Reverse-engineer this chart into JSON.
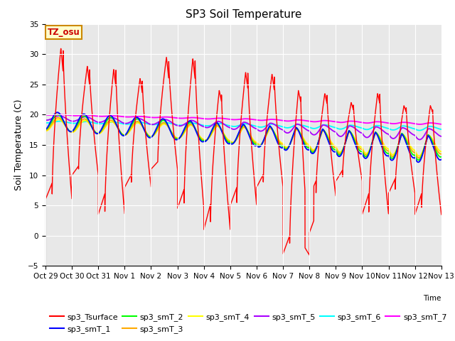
{
  "title": "SP3 Soil Temperature",
  "ylabel": "Soil Temperature (C)",
  "xlabel_text": "Time",
  "ylim": [
    -5,
    35
  ],
  "background_color": "#e8e8e8",
  "tz_label": "TZ_osu",
  "x_tick_labels": [
    "Oct 29",
    "Oct 30",
    "Oct 31",
    "Nov 1",
    "Nov 2",
    "Nov 3",
    "Nov 4",
    "Nov 5",
    "Nov 6",
    "Nov 7",
    "Nov 8",
    "Nov 9",
    "Nov 10",
    "Nov 11",
    "Nov 12",
    "Nov 13"
  ],
  "legend_colors": [
    "#ff0000",
    "#0000ff",
    "#00ff00",
    "#ffaa00",
    "#ffff00",
    "#aa00ff",
    "#00ffff",
    "#ff00ff"
  ],
  "legend_labels": [
    "sp3_Tsurface",
    "sp3_smT_1",
    "sp3_smT_2",
    "sp3_smT_3",
    "sp3_smT_4",
    "sp3_smT_5",
    "sp3_smT_6",
    "sp3_smT_7"
  ],
  "title_fontsize": 11,
  "tick_fontsize": 7.5,
  "ylabel_fontsize": 9,
  "legend_fontsize": 8
}
